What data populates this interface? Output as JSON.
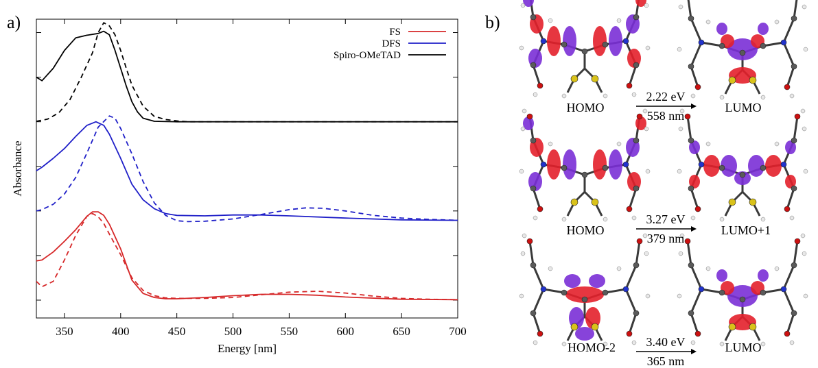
{
  "panel_a_label": "a)",
  "panel_b_label": "b)",
  "chart_data": {
    "type": "line",
    "xlabel": "Energy [nm]",
    "ylabel": "Absorbance",
    "xlim": [
      325,
      700
    ],
    "ylim": [
      0,
      6.7
    ],
    "xticks": [
      350,
      400,
      450,
      500,
      550,
      600,
      650,
      700
    ],
    "yticks": [
      0.4,
      1.4,
      2.4,
      3.4,
      4.4,
      5.4,
      6.4
    ],
    "y_tick_labels_shown": false,
    "grid": false,
    "legend_position": "top-right",
    "legend": [
      {
        "label": "FS",
        "color": "#d62728"
      },
      {
        "label": "DFS",
        "color": "#1f1fc8"
      },
      {
        "label": "Spiro-OMeTAD",
        "color": "#000000"
      }
    ],
    "series": [
      {
        "name": "Spiro-OMeTAD",
        "color": "#000000",
        "dash": false,
        "x": [
          325,
          330,
          340,
          350,
          360,
          370,
          380,
          385,
          390,
          395,
          400,
          405,
          410,
          415,
          420,
          430,
          450,
          500,
          600,
          700
        ],
        "y": [
          5.4,
          5.32,
          5.6,
          6.0,
          6.28,
          6.34,
          6.38,
          6.43,
          6.35,
          6.0,
          5.6,
          5.2,
          4.85,
          4.62,
          4.48,
          4.41,
          4.4,
          4.4,
          4.4,
          4.4
        ]
      },
      {
        "name": "Spiro-OMeTAD",
        "color": "#000000",
        "dash": true,
        "x": [
          325,
          335,
          345,
          355,
          365,
          375,
          380,
          385,
          390,
          395,
          400,
          405,
          410,
          420,
          430,
          440,
          450,
          460,
          500,
          700
        ],
        "y": [
          4.41,
          4.46,
          4.6,
          4.9,
          5.4,
          5.95,
          6.4,
          6.62,
          6.55,
          6.35,
          6.0,
          5.6,
          5.22,
          4.75,
          4.52,
          4.45,
          4.42,
          4.4,
          4.4,
          4.4
        ]
      },
      {
        "name": "DFS",
        "color": "#1f1fc8",
        "dash": false,
        "x": [
          325,
          330,
          340,
          350,
          360,
          370,
          378,
          385,
          390,
          400,
          410,
          420,
          430,
          440,
          450,
          475,
          500,
          525,
          550,
          600,
          650,
          700
        ],
        "y": [
          3.3,
          3.38,
          3.58,
          3.8,
          4.07,
          4.32,
          4.4,
          4.32,
          4.12,
          3.58,
          3.0,
          2.65,
          2.45,
          2.34,
          2.3,
          2.29,
          2.31,
          2.31,
          2.29,
          2.24,
          2.2,
          2.19
        ]
      },
      {
        "name": "DFS",
        "color": "#1f1fc8",
        "dash": true,
        "x": [
          325,
          330,
          340,
          350,
          360,
          370,
          380,
          390,
          395,
          400,
          410,
          420,
          430,
          440,
          450,
          460,
          475,
          500,
          525,
          550,
          565,
          580,
          600,
          625,
          650,
          675,
          700
        ],
        "y": [
          2.4,
          2.43,
          2.55,
          2.78,
          3.15,
          3.7,
          4.28,
          4.53,
          4.48,
          4.25,
          3.68,
          3.06,
          2.58,
          2.3,
          2.18,
          2.16,
          2.17,
          2.22,
          2.32,
          2.43,
          2.47,
          2.46,
          2.4,
          2.3,
          2.24,
          2.21,
          2.19
        ]
      },
      {
        "name": "FS",
        "color": "#d62728",
        "dash": false,
        "x": [
          325,
          330,
          340,
          350,
          360,
          370,
          375,
          380,
          385,
          390,
          400,
          410,
          420,
          430,
          440,
          450,
          475,
          500,
          525,
          550,
          575,
          600,
          650,
          700
        ],
        "y": [
          1.28,
          1.3,
          1.48,
          1.72,
          1.98,
          2.28,
          2.38,
          2.38,
          2.3,
          2.1,
          1.55,
          0.85,
          0.55,
          0.46,
          0.43,
          0.43,
          0.46,
          0.5,
          0.53,
          0.53,
          0.51,
          0.47,
          0.42,
          0.41
        ]
      },
      {
        "name": "FS",
        "color": "#d62728",
        "dash": true,
        "x": [
          325,
          330,
          340,
          350,
          360,
          370,
          375,
          380,
          385,
          390,
          400,
          410,
          420,
          430,
          440,
          450,
          475,
          500,
          525,
          550,
          575,
          600,
          625,
          650,
          675,
          700
        ],
        "y": [
          0.82,
          0.7,
          0.82,
          1.3,
          1.85,
          2.28,
          2.34,
          2.27,
          2.12,
          1.88,
          1.42,
          0.9,
          0.62,
          0.5,
          0.45,
          0.44,
          0.44,
          0.46,
          0.52,
          0.58,
          0.6,
          0.56,
          0.49,
          0.44,
          0.42,
          0.41
        ]
      }
    ]
  },
  "panel_b": {
    "transitions": [
      {
        "from": "HOMO",
        "to": "LUMO",
        "energy": "2.22 eV",
        "wavelength": "558 nm"
      },
      {
        "from": "HOMO",
        "to": "LUMO+1",
        "energy": "3.27 eV",
        "wavelength": "379 nm"
      },
      {
        "from": "HOMO-2",
        "to": "LUMO",
        "energy": "3.40 eV",
        "wavelength": "365 nm"
      }
    ],
    "colors": {
      "positive_lobe": "#e3202b",
      "negative_lobe": "#7a2fd6",
      "carbon": "#5a5a5a",
      "nitrogen": "#2233cc",
      "sulfur": "#d9c21a",
      "oxygen": "#cc1111",
      "hydrogen": "#e8e8e8"
    }
  }
}
